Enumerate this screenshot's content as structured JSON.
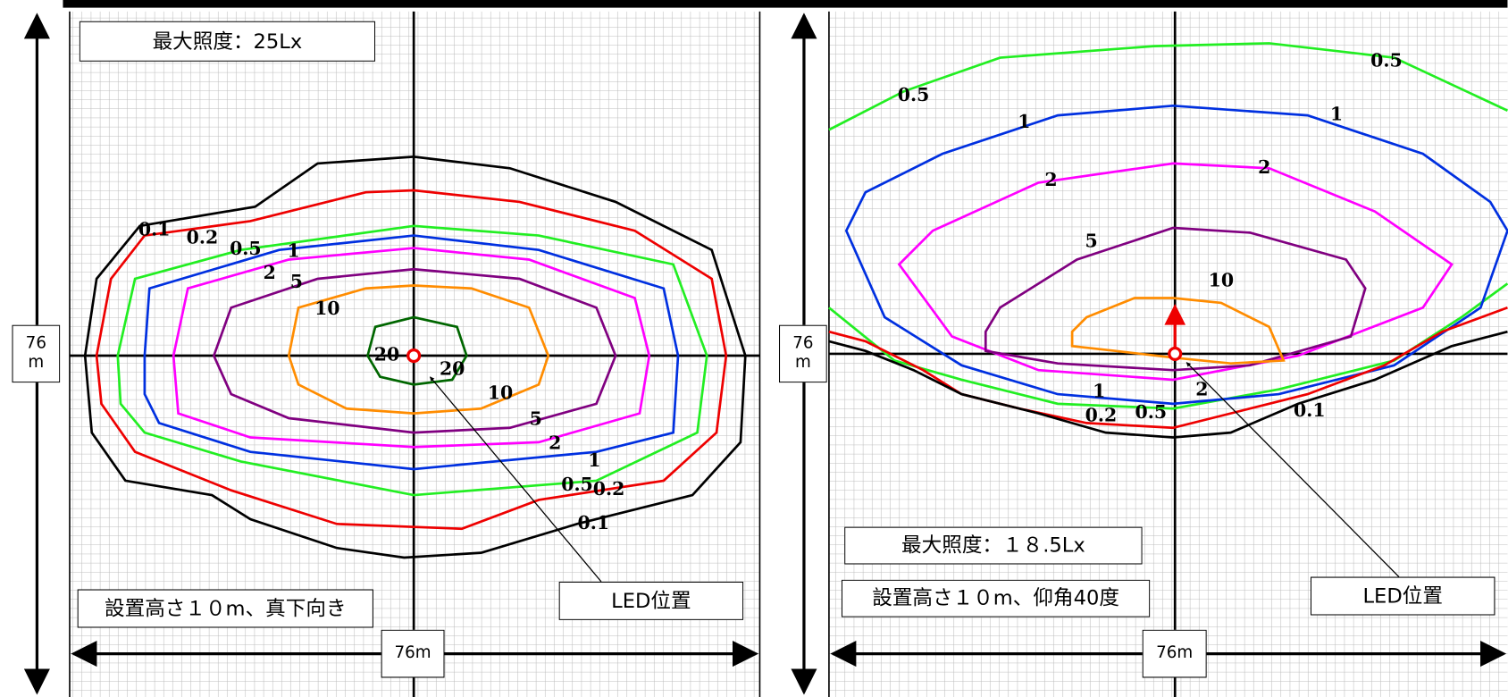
{
  "panels": [
    {
      "max_illuminance": "最大照度：25Lx",
      "install_note": "設置高さ１０m、真下向き",
      "led_label": "LED位置",
      "width_label": "76m",
      "height_label": "76m",
      "contour_labels": [
        "0.1",
        "0.2",
        "0.5",
        "1",
        "2",
        "5",
        "10",
        "20",
        "20",
        "10",
        "5",
        "2",
        "1",
        "0.5",
        "0.2",
        "0.1"
      ]
    },
    {
      "max_illuminance": "最大照度：１８.5Lx",
      "install_note": "設置高さ１０m、仰角40度",
      "led_label": "LED位置",
      "width_label": "76m",
      "height_label": "76m",
      "contour_labels": [
        "0.5",
        "0.5",
        "1",
        "1",
        "2",
        "2",
        "5",
        "10",
        "1",
        "2",
        "0.2",
        "0.5",
        "0.1"
      ]
    }
  ]
}
